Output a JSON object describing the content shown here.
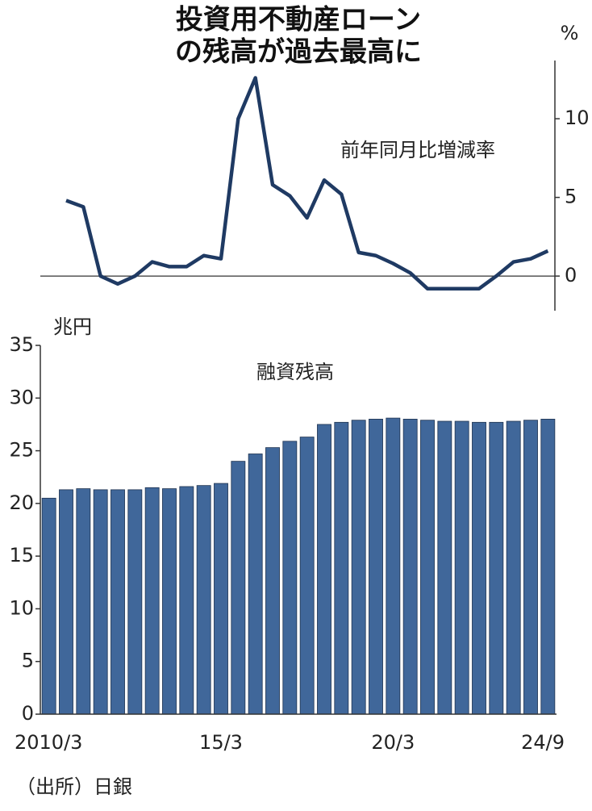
{
  "title": [
    "投資用不動産ローン",
    "の残高が過去最高に"
  ],
  "source": "（出所）日銀",
  "chart_data": [
    {
      "type": "line",
      "label": "前年同月比増減率",
      "unit": "%",
      "color": "#1f3a63",
      "values": [
        null,
        4.8,
        4.4,
        0,
        -0.5,
        0,
        0.9,
        0.6,
        0.6,
        1.3,
        1.1,
        10,
        12.6,
        5.8,
        5.1,
        3.7,
        6.1,
        5.2,
        1.5,
        1.3,
        0.8,
        0.2,
        -0.8,
        -0.8,
        -0.8,
        -0.8,
        0,
        0.9,
        1.1,
        1.6
      ],
      "axis": "y2",
      "y2lim": [
        -2.2,
        13.7
      ],
      "y2ticks": [
        0,
        5,
        10
      ]
    },
    {
      "type": "bar",
      "label": "融資残高",
      "unit": "兆円",
      "color": "#40679a",
      "categories": [
        "2010/3",
        null,
        null,
        null,
        null,
        null,
        null,
        null,
        null,
        null,
        "15/3",
        null,
        null,
        null,
        null,
        null,
        null,
        null,
        null,
        null,
        "20/3",
        null,
        null,
        null,
        null,
        null,
        null,
        null,
        null,
        "24/9"
      ],
      "values": [
        20.5,
        21.3,
        21.4,
        21.3,
        21.3,
        21.3,
        21.5,
        21.4,
        21.6,
        21.7,
        21.9,
        24.0,
        24.7,
        25.3,
        25.9,
        26.3,
        27.5,
        27.7,
        27.9,
        28.0,
        28.1,
        28.0,
        27.9,
        27.8,
        27.8,
        27.7,
        27.7,
        27.8,
        27.9,
        28.0
      ],
      "ylim": [
        0,
        35
      ],
      "yticks": [
        0,
        5,
        10,
        15,
        20,
        25,
        30,
        35
      ]
    }
  ]
}
